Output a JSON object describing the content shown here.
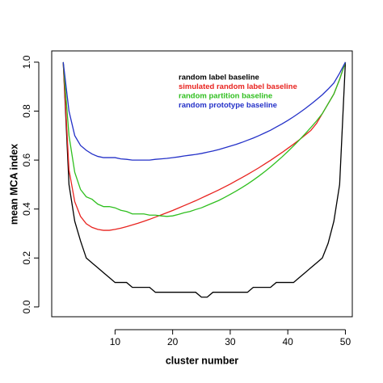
{
  "chart_data": {
    "type": "line",
    "xlabel": "cluster number",
    "ylabel": "mean MCA index",
    "x": [
      1,
      2,
      3,
      4,
      5,
      6,
      7,
      8,
      9,
      10,
      11,
      12,
      13,
      14,
      15,
      16,
      17,
      18,
      19,
      20,
      21,
      22,
      23,
      24,
      25,
      26,
      27,
      28,
      29,
      30,
      31,
      32,
      33,
      34,
      35,
      36,
      37,
      38,
      39,
      40,
      41,
      42,
      43,
      44,
      45,
      46,
      47,
      48,
      49,
      50
    ],
    "series": [
      {
        "name": "random label baseline",
        "color": "#000000",
        "values": [
          1.0,
          0.5,
          0.35,
          0.27,
          0.2,
          0.18,
          0.16,
          0.14,
          0.12,
          0.1,
          0.1,
          0.1,
          0.08,
          0.08,
          0.08,
          0.08,
          0.06,
          0.06,
          0.06,
          0.06,
          0.06,
          0.06,
          0.06,
          0.06,
          0.04,
          0.04,
          0.06,
          0.06,
          0.06,
          0.06,
          0.06,
          0.06,
          0.06,
          0.08,
          0.08,
          0.08,
          0.08,
          0.1,
          0.1,
          0.1,
          0.1,
          0.12,
          0.14,
          0.16,
          0.18,
          0.2,
          0.26,
          0.35,
          0.5,
          1.0
        ]
      },
      {
        "name": "simulated random label baseline",
        "color": "#e8231f",
        "values": [
          1.0,
          0.56,
          0.43,
          0.37,
          0.34,
          0.325,
          0.317,
          0.313,
          0.313,
          0.317,
          0.322,
          0.328,
          0.335,
          0.342,
          0.35,
          0.358,
          0.367,
          0.376,
          0.385,
          0.394,
          0.404,
          0.414,
          0.424,
          0.434,
          0.445,
          0.456,
          0.467,
          0.478,
          0.49,
          0.502,
          0.515,
          0.528,
          0.541,
          0.555,
          0.569,
          0.584,
          0.599,
          0.615,
          0.631,
          0.648,
          0.665,
          0.683,
          0.702,
          0.721,
          0.75,
          0.79,
          0.83,
          0.87,
          0.93,
          1.0
        ]
      },
      {
        "name": "random partition baseline",
        "color": "#2fbf1f",
        "values": [
          1.0,
          0.7,
          0.55,
          0.48,
          0.45,
          0.44,
          0.42,
          0.41,
          0.41,
          0.405,
          0.395,
          0.39,
          0.38,
          0.38,
          0.38,
          0.375,
          0.375,
          0.372,
          0.37,
          0.372,
          0.378,
          0.385,
          0.39,
          0.398,
          0.405,
          0.415,
          0.425,
          0.435,
          0.447,
          0.46,
          0.473,
          0.487,
          0.502,
          0.518,
          0.535,
          0.553,
          0.572,
          0.592,
          0.613,
          0.635,
          0.658,
          0.682,
          0.707,
          0.733,
          0.76,
          0.79,
          0.83,
          0.87,
          0.93,
          1.0
        ]
      },
      {
        "name": "random prototype baseline",
        "color": "#2431c8",
        "values": [
          1.0,
          0.8,
          0.7,
          0.66,
          0.64,
          0.625,
          0.615,
          0.61,
          0.61,
          0.61,
          0.605,
          0.603,
          0.6,
          0.6,
          0.6,
          0.6,
          0.603,
          0.605,
          0.607,
          0.61,
          0.613,
          0.617,
          0.62,
          0.623,
          0.627,
          0.632,
          0.637,
          0.643,
          0.65,
          0.657,
          0.664,
          0.672,
          0.681,
          0.69,
          0.7,
          0.711,
          0.722,
          0.735,
          0.748,
          0.762,
          0.777,
          0.793,
          0.81,
          0.828,
          0.847,
          0.867,
          0.89,
          0.915,
          0.955,
          1.0
        ]
      }
    ],
    "xlim": [
      -1,
      51.2
    ],
    "ylim": [
      -0.04,
      1.046
    ],
    "xticks": [
      10,
      20,
      30,
      40,
      50
    ],
    "yticks": [
      {
        "value": 0,
        "label": "0.0"
      },
      {
        "value": 0.2,
        "label": "0.2"
      },
      {
        "value": 0.4,
        "label": "0.4"
      },
      {
        "value": 0.6,
        "label": "0.6"
      },
      {
        "value": 0.8,
        "label": "0.8"
      },
      {
        "value": 1,
        "label": "1.0"
      }
    ]
  }
}
